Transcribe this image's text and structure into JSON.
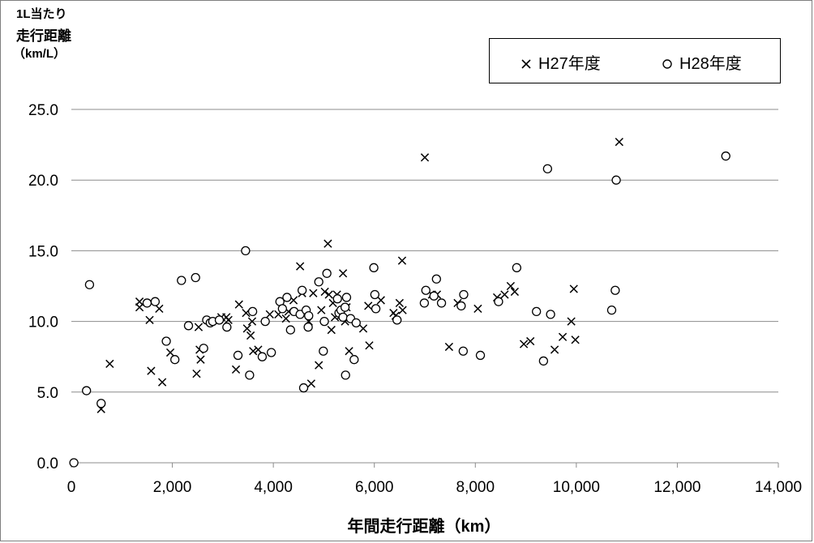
{
  "chart_data": {
    "type": "scatter",
    "ylabel_lines": [
      "1L当たり",
      "走行距離",
      "（km/L）"
    ],
    "xlabel": "年間走行距離（km）",
    "xlim": [
      0,
      14000
    ],
    "ylim": [
      0,
      25
    ],
    "x_ticks": [
      "0",
      "2,000",
      "4,000",
      "6,000",
      "8,000",
      "10,000",
      "12,000",
      "14,000"
    ],
    "y_ticks": [
      "0.0",
      "5.0",
      "10.0",
      "15.0",
      "20.0",
      "25.0"
    ],
    "grid": "horizontal",
    "legend_position": "top-right",
    "series": [
      {
        "name": "H27年度",
        "marker": "×",
        "color": "#000000",
        "points": [
          [
            590,
            3.8
          ],
          [
            760,
            7.0
          ],
          [
            1350,
            11.4
          ],
          [
            1350,
            11.0
          ],
          [
            1550,
            10.1
          ],
          [
            1580,
            6.5
          ],
          [
            1740,
            10.9
          ],
          [
            1800,
            5.7
          ],
          [
            1960,
            7.8
          ],
          [
            2480,
            6.3
          ],
          [
            2520,
            9.6
          ],
          [
            2540,
            8.0
          ],
          [
            2560,
            7.3
          ],
          [
            2970,
            10.3
          ],
          [
            3070,
            10.3
          ],
          [
            3110,
            10.1
          ],
          [
            3260,
            6.6
          ],
          [
            3320,
            11.2
          ],
          [
            3460,
            10.6
          ],
          [
            3480,
            9.5
          ],
          [
            3550,
            9.0
          ],
          [
            3580,
            10.0
          ],
          [
            3600,
            7.9
          ],
          [
            3700,
            8.0
          ],
          [
            3930,
            10.5
          ],
          [
            4100,
            10.5
          ],
          [
            4250,
            10.2
          ],
          [
            4300,
            10.7
          ],
          [
            4400,
            11.5
          ],
          [
            4530,
            13.9
          ],
          [
            4570,
            12.0
          ],
          [
            4700,
            10.0
          ],
          [
            4750,
            5.6
          ],
          [
            4790,
            12.0
          ],
          [
            4900,
            6.9
          ],
          [
            4950,
            10.8
          ],
          [
            5020,
            12.1
          ],
          [
            5080,
            15.5
          ],
          [
            5100,
            11.9
          ],
          [
            5150,
            9.4
          ],
          [
            5180,
            11.3
          ],
          [
            5220,
            10.3
          ],
          [
            5260,
            11.9
          ],
          [
            5330,
            10.4
          ],
          [
            5380,
            13.4
          ],
          [
            5420,
            10.0
          ],
          [
            5450,
            11.0
          ],
          [
            5500,
            7.9
          ],
          [
            5780,
            9.5
          ],
          [
            5880,
            11.1
          ],
          [
            5900,
            8.3
          ],
          [
            6130,
            11.5
          ],
          [
            6380,
            10.6
          ],
          [
            6420,
            10.4
          ],
          [
            6500,
            11.3
          ],
          [
            6550,
            14.3
          ],
          [
            6560,
            10.8
          ],
          [
            7000,
            21.6
          ],
          [
            7140,
            11.9
          ],
          [
            7240,
            11.9
          ],
          [
            7480,
            8.2
          ],
          [
            7650,
            11.3
          ],
          [
            8050,
            10.9
          ],
          [
            8430,
            11.7
          ],
          [
            8580,
            11.9
          ],
          [
            8700,
            12.5
          ],
          [
            8780,
            12.1
          ],
          [
            8960,
            8.4
          ],
          [
            9090,
            8.6
          ],
          [
            9570,
            8.0
          ],
          [
            9730,
            8.9
          ],
          [
            9900,
            10.0
          ],
          [
            9950,
            12.3
          ],
          [
            9980,
            8.7
          ],
          [
            10850,
            22.7
          ]
        ]
      },
      {
        "name": "H28年度",
        "marker": "○",
        "color": "#000000",
        "points": [
          [
            50,
            0.0
          ],
          [
            300,
            5.1
          ],
          [
            360,
            12.6
          ],
          [
            590,
            4.2
          ],
          [
            1500,
            11.3
          ],
          [
            1660,
            11.4
          ],
          [
            1880,
            8.6
          ],
          [
            2050,
            7.3
          ],
          [
            2180,
            12.9
          ],
          [
            2320,
            9.7
          ],
          [
            2460,
            13.1
          ],
          [
            2620,
            8.1
          ],
          [
            2680,
            10.1
          ],
          [
            2750,
            9.9
          ],
          [
            2800,
            10.0
          ],
          [
            2930,
            10.1
          ],
          [
            3080,
            9.6
          ],
          [
            3300,
            7.6
          ],
          [
            3450,
            15.0
          ],
          [
            3530,
            6.2
          ],
          [
            3590,
            10.7
          ],
          [
            3780,
            7.5
          ],
          [
            3840,
            10.0
          ],
          [
            3960,
            7.8
          ],
          [
            4130,
            11.4
          ],
          [
            4180,
            10.9
          ],
          [
            4270,
            11.7
          ],
          [
            4340,
            9.4
          ],
          [
            4410,
            10.7
          ],
          [
            4530,
            10.5
          ],
          [
            4570,
            12.2
          ],
          [
            4600,
            5.3
          ],
          [
            4650,
            10.8
          ],
          [
            4700,
            10.4
          ],
          [
            4690,
            9.6
          ],
          [
            4900,
            12.8
          ],
          [
            4990,
            7.9
          ],
          [
            5010,
            10.0
          ],
          [
            5060,
            13.4
          ],
          [
            5270,
            11.6
          ],
          [
            5300,
            10.6
          ],
          [
            5340,
            10.8
          ],
          [
            5380,
            10.3
          ],
          [
            5420,
            11.0
          ],
          [
            5430,
            6.2
          ],
          [
            5450,
            11.7
          ],
          [
            5530,
            10.2
          ],
          [
            5600,
            7.3
          ],
          [
            5640,
            9.9
          ],
          [
            5990,
            13.8
          ],
          [
            6010,
            11.9
          ],
          [
            6030,
            10.9
          ],
          [
            6450,
            10.1
          ],
          [
            6990,
            11.3
          ],
          [
            7020,
            12.2
          ],
          [
            7180,
            11.8
          ],
          [
            7230,
            13.0
          ],
          [
            7330,
            11.3
          ],
          [
            7720,
            11.1
          ],
          [
            7760,
            7.9
          ],
          [
            7770,
            11.9
          ],
          [
            8100,
            7.6
          ],
          [
            8460,
            11.4
          ],
          [
            8820,
            13.8
          ],
          [
            9210,
            10.7
          ],
          [
            9350,
            7.2
          ],
          [
            9430,
            20.8
          ],
          [
            9490,
            10.5
          ],
          [
            10700,
            10.8
          ],
          [
            10770,
            12.2
          ],
          [
            10790,
            20.0
          ],
          [
            12960,
            21.7
          ]
        ]
      }
    ]
  }
}
